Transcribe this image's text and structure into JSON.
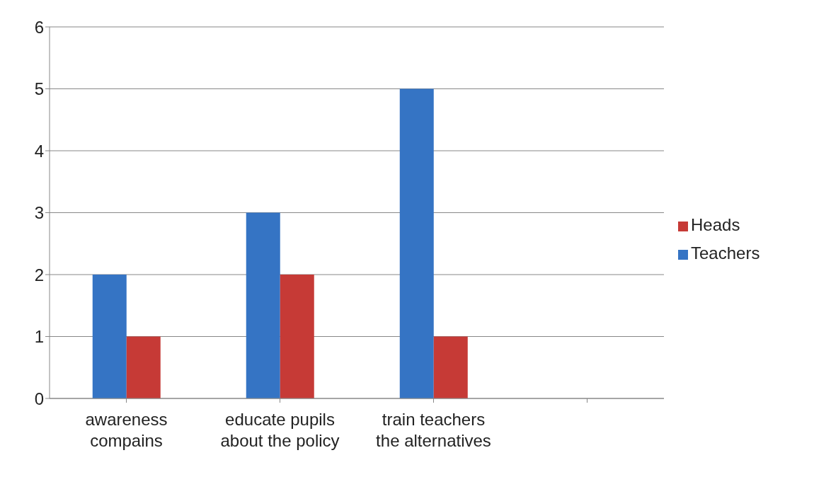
{
  "chart_data": {
    "type": "bar",
    "categories": [
      "awareness\ncompains",
      "educate pupils\nabout the policy",
      "train teachers\nthe alternatives",
      null
    ],
    "series": [
      {
        "name": "Teachers",
        "color": "#3574c4",
        "values": [
          2,
          3,
          5,
          null
        ]
      },
      {
        "name": "Heads",
        "color": "#c63a36",
        "values": [
          1,
          2,
          1,
          null
        ]
      }
    ],
    "ylim": [
      0,
      6
    ],
    "yticks": [
      0,
      1,
      2,
      3,
      4,
      5,
      6
    ],
    "grid": "y",
    "legend": "right"
  }
}
